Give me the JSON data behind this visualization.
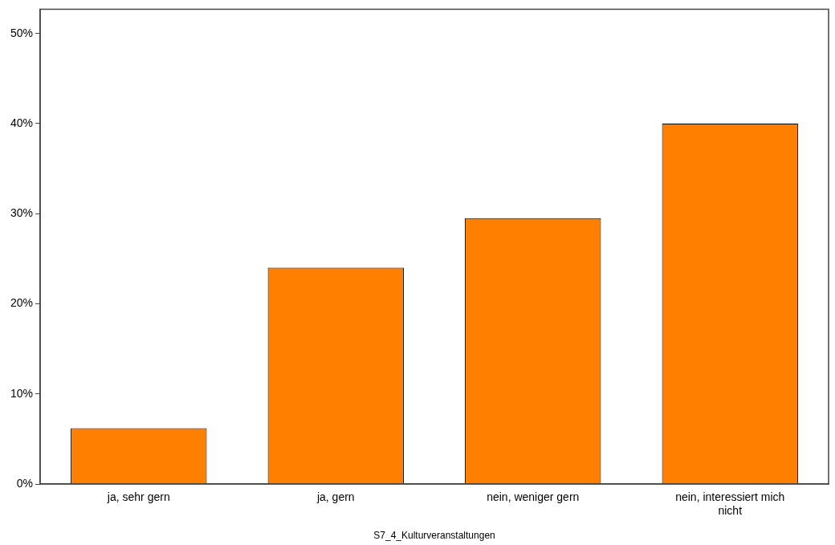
{
  "chart_data": {
    "type": "bar",
    "xlabel": "S7_4_Kulturveranstaltungen",
    "categories": [
      "ja, sehr gern",
      "ja, gern",
      "nein, weniger gern",
      "nein, interessiert mich nicht"
    ],
    "values": [
      6.2,
      24.0,
      29.5,
      40.0
    ],
    "color": "#ff7f00",
    "ylim": [
      0,
      52.7
    ],
    "yticks": [
      {
        "value": 0,
        "label": "0%"
      },
      {
        "value": 10,
        "label": "10%"
      },
      {
        "value": 20,
        "label": "20%"
      },
      {
        "value": 30,
        "label": "30%"
      },
      {
        "value": 40,
        "label": "40%"
      },
      {
        "value": 50,
        "label": "50%"
      }
    ],
    "grid": false,
    "legend": false
  }
}
